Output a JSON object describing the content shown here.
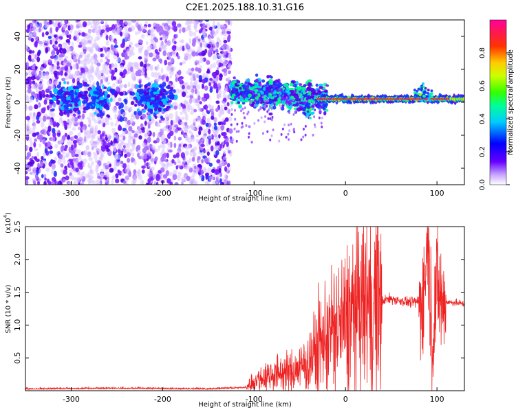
{
  "title": "C2E1.2025.188.10.31.G16",
  "chart_data": [
    {
      "type": "heatmap",
      "xlabel": "Height of straight line (km)",
      "ylabel": "Frequency (Hz)",
      "xlim": [
        -350,
        130
      ],
      "ylim": [
        -50,
        50
      ],
      "xticks": [
        -300,
        -200,
        -100,
        0,
        100
      ],
      "yticks": [
        -40,
        -20,
        0,
        20,
        40
      ],
      "colorbar": {
        "label": "Normalized spectral amplitude",
        "range": [
          0.0,
          1.0
        ],
        "ticks": [
          0.0,
          0.2,
          0.4,
          0.6,
          0.8
        ],
        "tick_labels": [
          "0.0",
          "0.2",
          "0.4",
          "0.6",
          "0.8"
        ],
        "colormap": [
          "#ffffff",
          "#6600ff",
          "#0000ff",
          "#00ccff",
          "#00ff66",
          "#66ff00",
          "#ffff00",
          "#ff6600",
          "#ff0000",
          "#ff00aa"
        ]
      },
      "features": [
        {
          "x_range": [
            -350,
            -125
          ],
          "description": "diffuse scattered noise across all frequencies"
        },
        {
          "x_range": [
            -125,
            130
          ],
          "description": "energy concentrated near 0-5 Hz, narrowing with height, strong red ridge from x=-20 to x=130 at about 2 Hz"
        }
      ]
    },
    {
      "type": "line",
      "xlabel": "Height of straight line (km)",
      "ylabel": "SNR (10 * v/v)",
      "y_scale_label": "(x10",
      "y_scale_exponent": "4",
      "xlim": [
        -350,
        130
      ],
      "ylim": [
        0,
        25000
      ],
      "xticks": [
        -300,
        -200,
        -100,
        0,
        100
      ],
      "yticks": [
        5000,
        10000,
        15000,
        20000,
        25000
      ],
      "ytick_labels": [
        "0.5",
        "1.0",
        "1.5",
        "2.0",
        "2.5"
      ],
      "color": "#ee2222",
      "x": [
        -350,
        -300,
        -250,
        -200,
        -150,
        -110,
        -100,
        -90,
        -80,
        -70,
        -60,
        -50,
        -40,
        -30,
        -20,
        -10,
        0,
        10,
        20,
        30,
        40,
        50,
        60,
        70,
        80,
        85,
        90,
        95,
        100,
        105,
        110,
        120,
        130
      ],
      "y": [
        200,
        250,
        300,
        250,
        200,
        400,
        1500,
        2000,
        2500,
        2700,
        2800,
        3500,
        4500,
        6500,
        8500,
        9500,
        10500,
        12000,
        13000,
        13500,
        13700,
        14000,
        13700,
        13500,
        13500,
        14000,
        23500,
        8000,
        16000,
        13500,
        13500,
        13400,
        13200
      ]
    }
  ]
}
